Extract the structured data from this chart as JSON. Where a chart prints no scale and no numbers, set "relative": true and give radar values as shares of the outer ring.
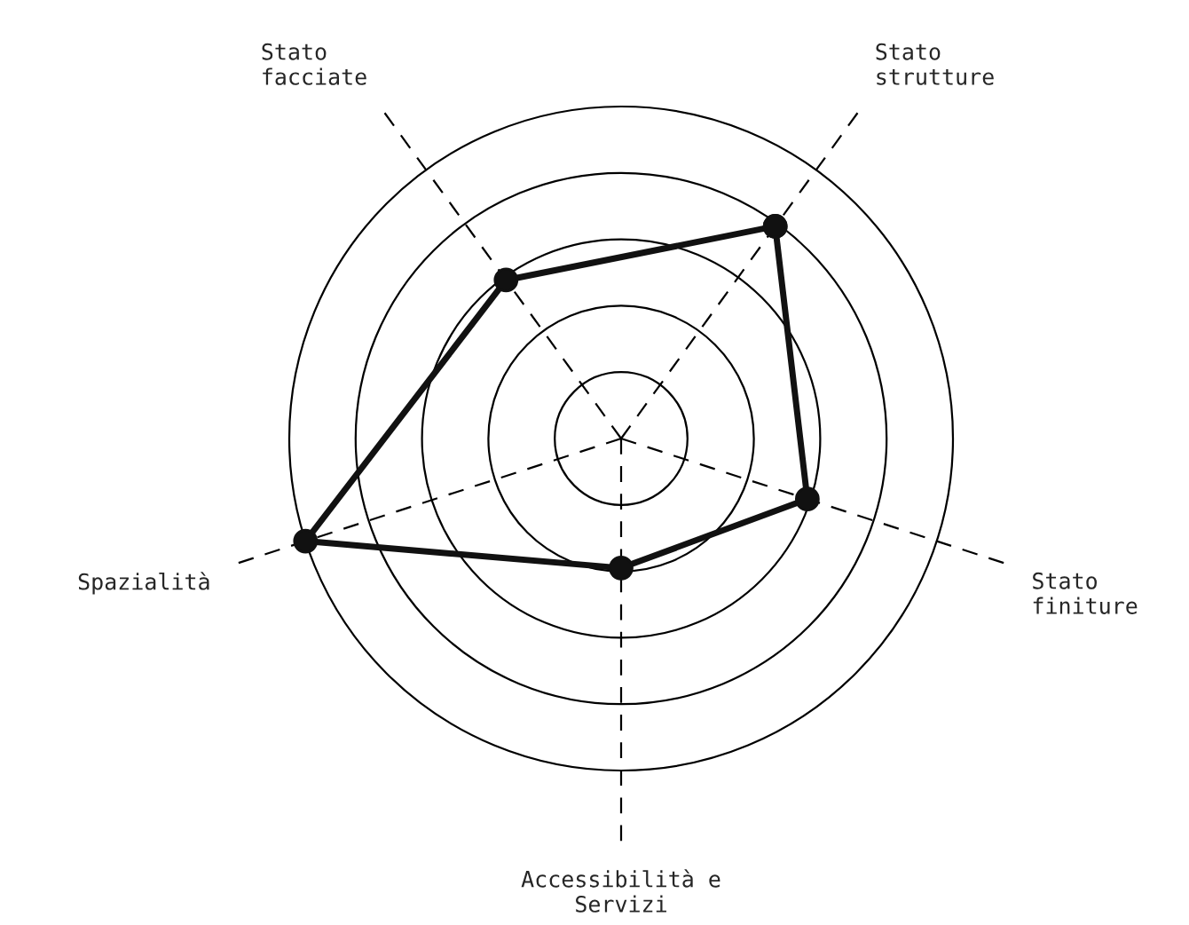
{
  "chart_data": {
    "type": "radar",
    "relative": true,
    "grid": true,
    "marker": "circle",
    "line_style": "solid",
    "categories": [
      "Stato\nstrutture",
      "Stato\nfiniture",
      "Accessibilità e\nServizi",
      "Spazialità",
      "Stato\nfacciate"
    ],
    "series": [
      {
        "color": "#111111",
        "values": [
          0.79,
          0.59,
          0.39,
          1.0,
          0.59
        ]
      }
    ]
  }
}
